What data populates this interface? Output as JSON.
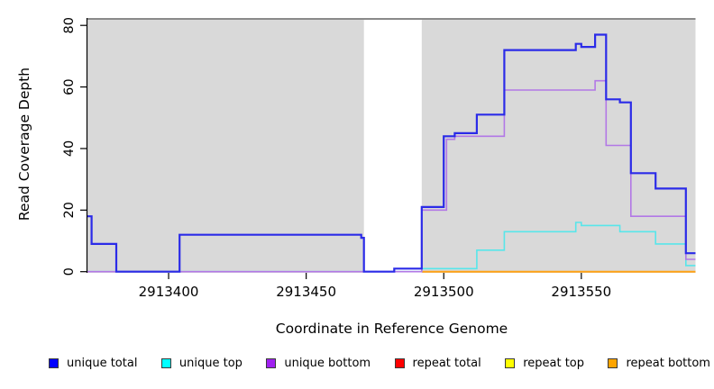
{
  "chart_data": {
    "type": "step-line",
    "title": "",
    "xlabel": "Coordinate in Reference Genome",
    "ylabel": "Read Coverage Depth",
    "xlim": [
      2913370.5,
      2913591.5
    ],
    "ylim": [
      0,
      82.4
    ],
    "x_ticks": [
      2913400,
      2913450,
      2913500,
      2913550
    ],
    "y_ticks": [
      0,
      20,
      40,
      60,
      80
    ],
    "grid": false,
    "panel_bg": "#d9d9d9",
    "panel_top_border": "#8a8a8a",
    "gap_region": [
      2913471,
      2913492
    ],
    "legend_position": "bottom",
    "series": [
      {
        "name": "repeat total",
        "color": "#ee4b5e",
        "width": 1.2,
        "xend": 2913492,
        "points": [
          [
            2913370.5,
            0
          ]
        ]
      },
      {
        "name": "repeat top",
        "color": "#ffff00",
        "width": 1.2,
        "xend": 2913492,
        "hidden": true,
        "points": [
          [
            2913370.5,
            0
          ]
        ]
      },
      {
        "name": "repeat bottom",
        "color": "#ffa215",
        "width": 2,
        "points": [
          [
            2913492,
            0
          ]
        ]
      },
      {
        "name": "unique top",
        "color": "#58e6ea",
        "width": 1.6,
        "points": [
          [
            2913370.5,
            0
          ],
          [
            2913492,
            1
          ],
          [
            2913512,
            7
          ],
          [
            2913522,
            13
          ],
          [
            2913548,
            16
          ],
          [
            2913550,
            15
          ],
          [
            2913564,
            13
          ],
          [
            2913577,
            9
          ],
          [
            2913588,
            2
          ]
        ]
      },
      {
        "name": "unique bottom",
        "color": "#b278e6",
        "width": 1.6,
        "points": [
          [
            2913370.5,
            0
          ],
          [
            2913492,
            20
          ],
          [
            2913501,
            43
          ],
          [
            2913504,
            44
          ],
          [
            2913522,
            59
          ],
          [
            2913555,
            62
          ],
          [
            2913559,
            41
          ],
          [
            2913568,
            18
          ],
          [
            2913588,
            4
          ]
        ]
      },
      {
        "name": "unique total",
        "color": "#2b2be8",
        "width": 2.2,
        "points": [
          [
            2913370.5,
            18
          ],
          [
            2913372,
            9
          ],
          [
            2913381,
            0
          ],
          [
            2913404,
            12
          ],
          [
            2913470,
            11
          ],
          [
            2913471,
            0
          ],
          [
            2913482,
            1
          ],
          [
            2913492,
            21
          ],
          [
            2913500,
            44
          ],
          [
            2913504,
            45
          ],
          [
            2913512,
            51
          ],
          [
            2913522,
            72
          ],
          [
            2913548,
            74
          ],
          [
            2913550,
            73
          ],
          [
            2913555,
            77
          ],
          [
            2913559,
            56
          ],
          [
            2913564,
            55
          ],
          [
            2913568,
            32
          ],
          [
            2913577,
            27
          ],
          [
            2913588,
            6
          ]
        ]
      }
    ],
    "legend": [
      {
        "label": "unique total",
        "swatch": "#0000ff"
      },
      {
        "label": "unique top",
        "swatch": "#00ffff"
      },
      {
        "label": "unique bottom",
        "swatch": "#a020f0"
      },
      {
        "label": "repeat total",
        "swatch": "#ff0000"
      },
      {
        "label": "repeat top",
        "swatch": "#ffff00"
      },
      {
        "label": "repeat bottom",
        "swatch": "#ffa500"
      }
    ]
  }
}
